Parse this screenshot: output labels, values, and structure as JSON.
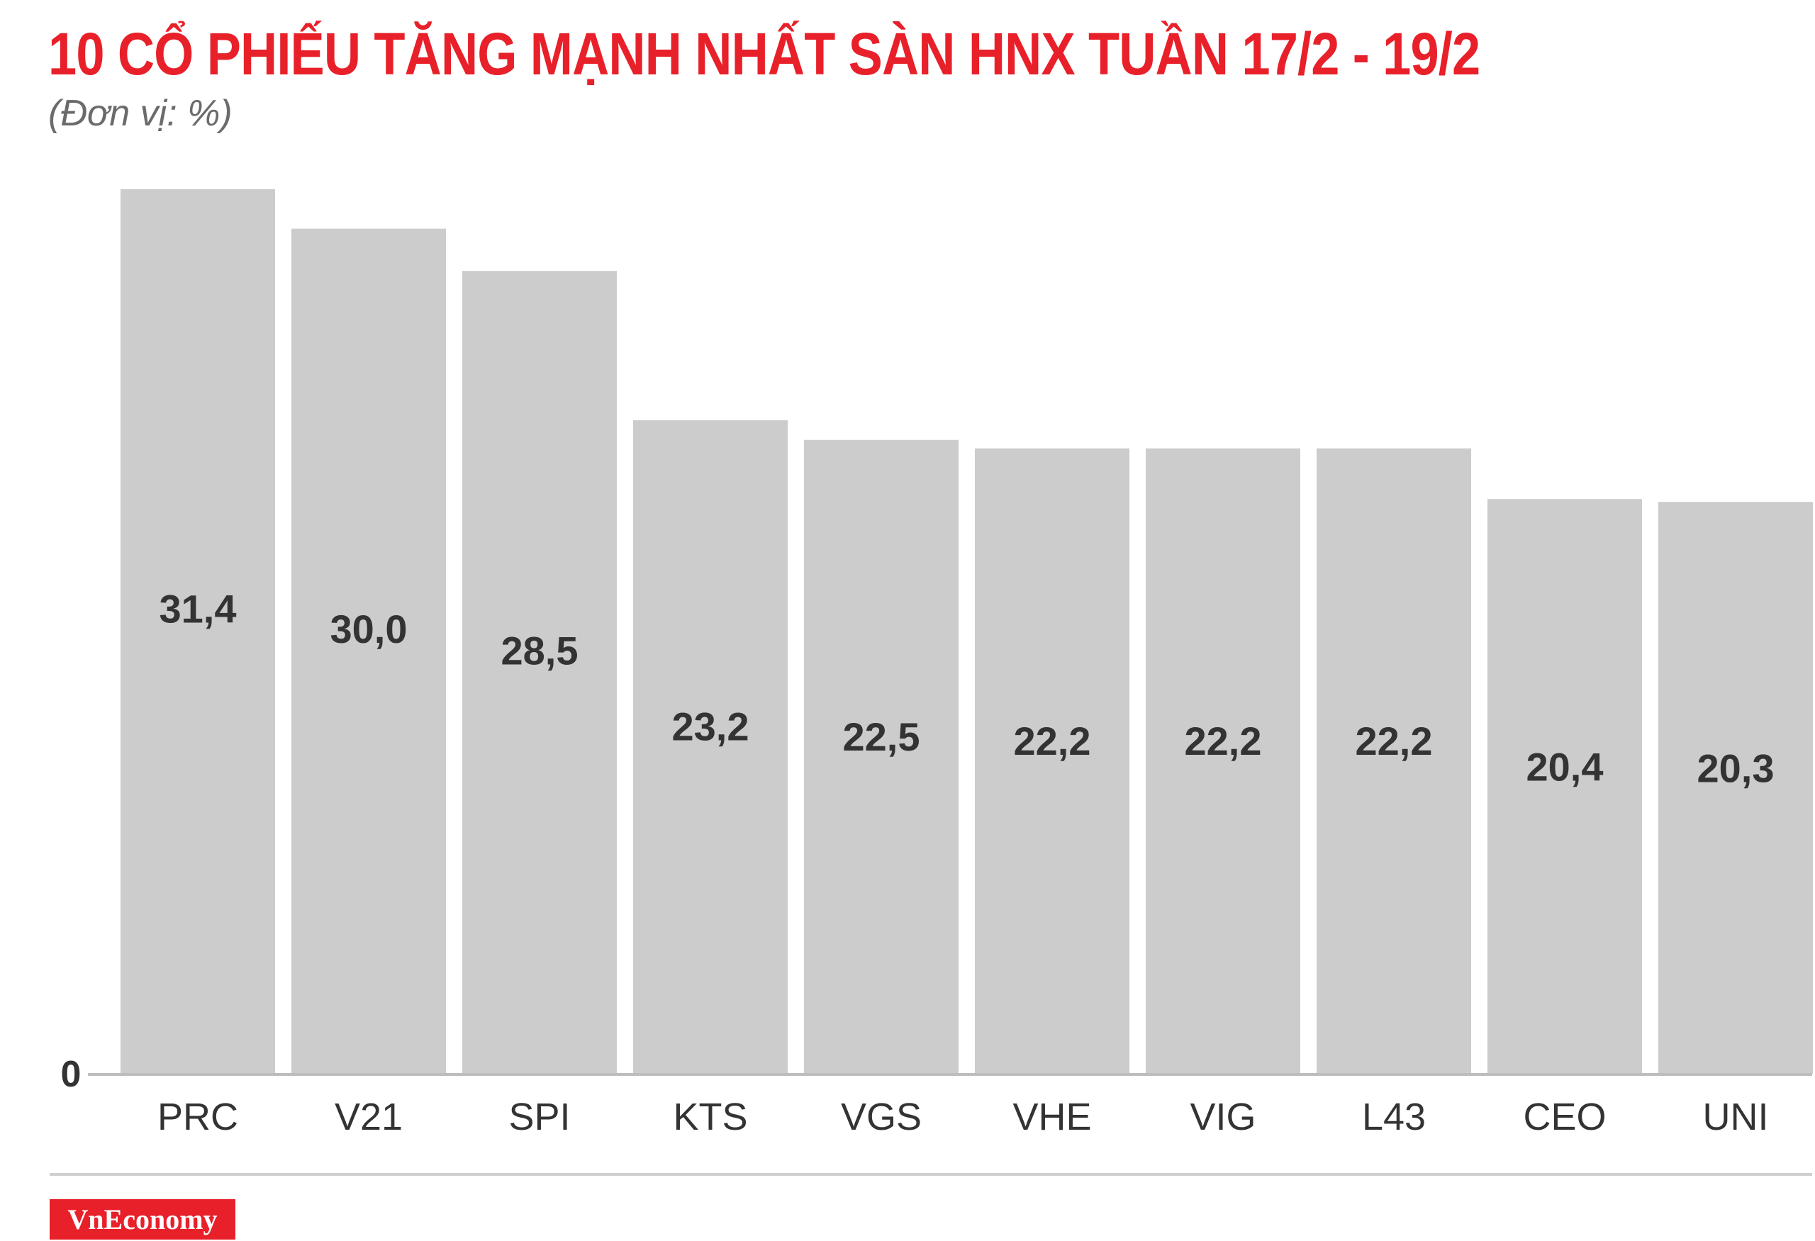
{
  "header": {
    "title": "10 CỔ PHIẾU TĂNG MẠNH NHẤT SÀN HNX TUẦN 17/2 - 19/2",
    "subtitle": "(Đơn vị: %)"
  },
  "colors": {
    "title": "#e8202a",
    "bar": "#cccccc",
    "axis": "#bdbdbd",
    "value_label": "#333333",
    "category_label": "#333333",
    "logo_bg": "#e8202a"
  },
  "logo": {
    "text": "VnEconomy"
  },
  "chart_data": {
    "type": "bar",
    "categories": [
      "PRC",
      "V21",
      "SPI",
      "KTS",
      "VGS",
      "VHE",
      "VIG",
      "L43",
      "CEO",
      "UNI"
    ],
    "values": [
      31.4,
      30.0,
      28.5,
      23.2,
      22.5,
      22.2,
      22.2,
      22.2,
      20.4,
      20.3
    ],
    "value_labels": [
      "31,4",
      "30,0",
      "28,5",
      "23,2",
      "22,5",
      "22,2",
      "22,2",
      "22,2",
      "20,4",
      "20,3"
    ],
    "title": "10 CỔ PHIẾU TĂNG MẠNH NHẤT SÀN HNX TUẦN 17/2 - 19/2",
    "subtitle": "(Đơn vị: %)",
    "y_tick_labels": [
      "0"
    ],
    "ylim": [
      0,
      31.4
    ],
    "grid": false,
    "legend": "none"
  }
}
